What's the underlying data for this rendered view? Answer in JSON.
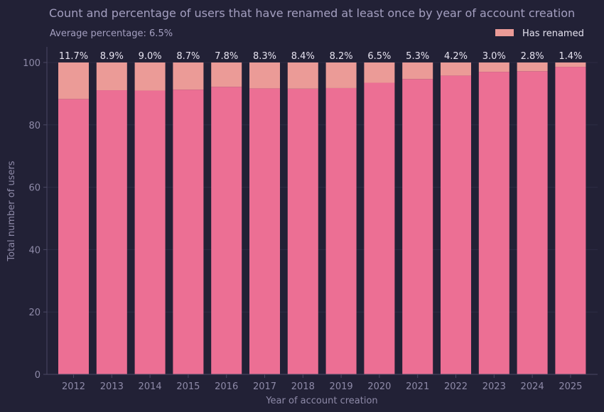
{
  "chart_data": {
    "type": "bar",
    "stacked": true,
    "title": "Count and percentage of users that have renamed at least once by year of account creation",
    "subtitle": "Average percentage: 6.5%",
    "xlabel": "Year of account creation",
    "ylabel": "Total number of users",
    "ylim": [
      0,
      105
    ],
    "yticks": [
      "0",
      "20",
      "40",
      "60",
      "80",
      "100"
    ],
    "categories": [
      "2012",
      "2013",
      "2014",
      "2015",
      "2016",
      "2017",
      "2018",
      "2019",
      "2020",
      "2021",
      "2022",
      "2023",
      "2024",
      "2025"
    ],
    "series": [
      {
        "values": [
          88.3,
          91.1,
          91.0,
          91.3,
          92.2,
          91.7,
          91.6,
          91.8,
          93.5,
          94.7,
          95.8,
          97.0,
          97.2,
          98.6
        ],
        "color": "#ec6f94"
      },
      {
        "name": "Has renamed",
        "values": [
          11.7,
          8.9,
          9.0,
          8.7,
          7.8,
          8.3,
          8.4,
          8.2,
          6.5,
          5.3,
          4.2,
          3.0,
          2.8,
          1.4
        ],
        "color": "#eb9b97"
      }
    ],
    "data_labels": [
      "11.7%",
      "8.9%",
      "9.0%",
      "8.7%",
      "7.8%",
      "8.3%",
      "8.4%",
      "8.2%",
      "6.5%",
      "5.3%",
      "4.2%",
      "3.0%",
      "2.8%",
      "1.4%"
    ],
    "legend": {
      "position": "top-right",
      "label": "Has renamed"
    },
    "grid": true
  }
}
